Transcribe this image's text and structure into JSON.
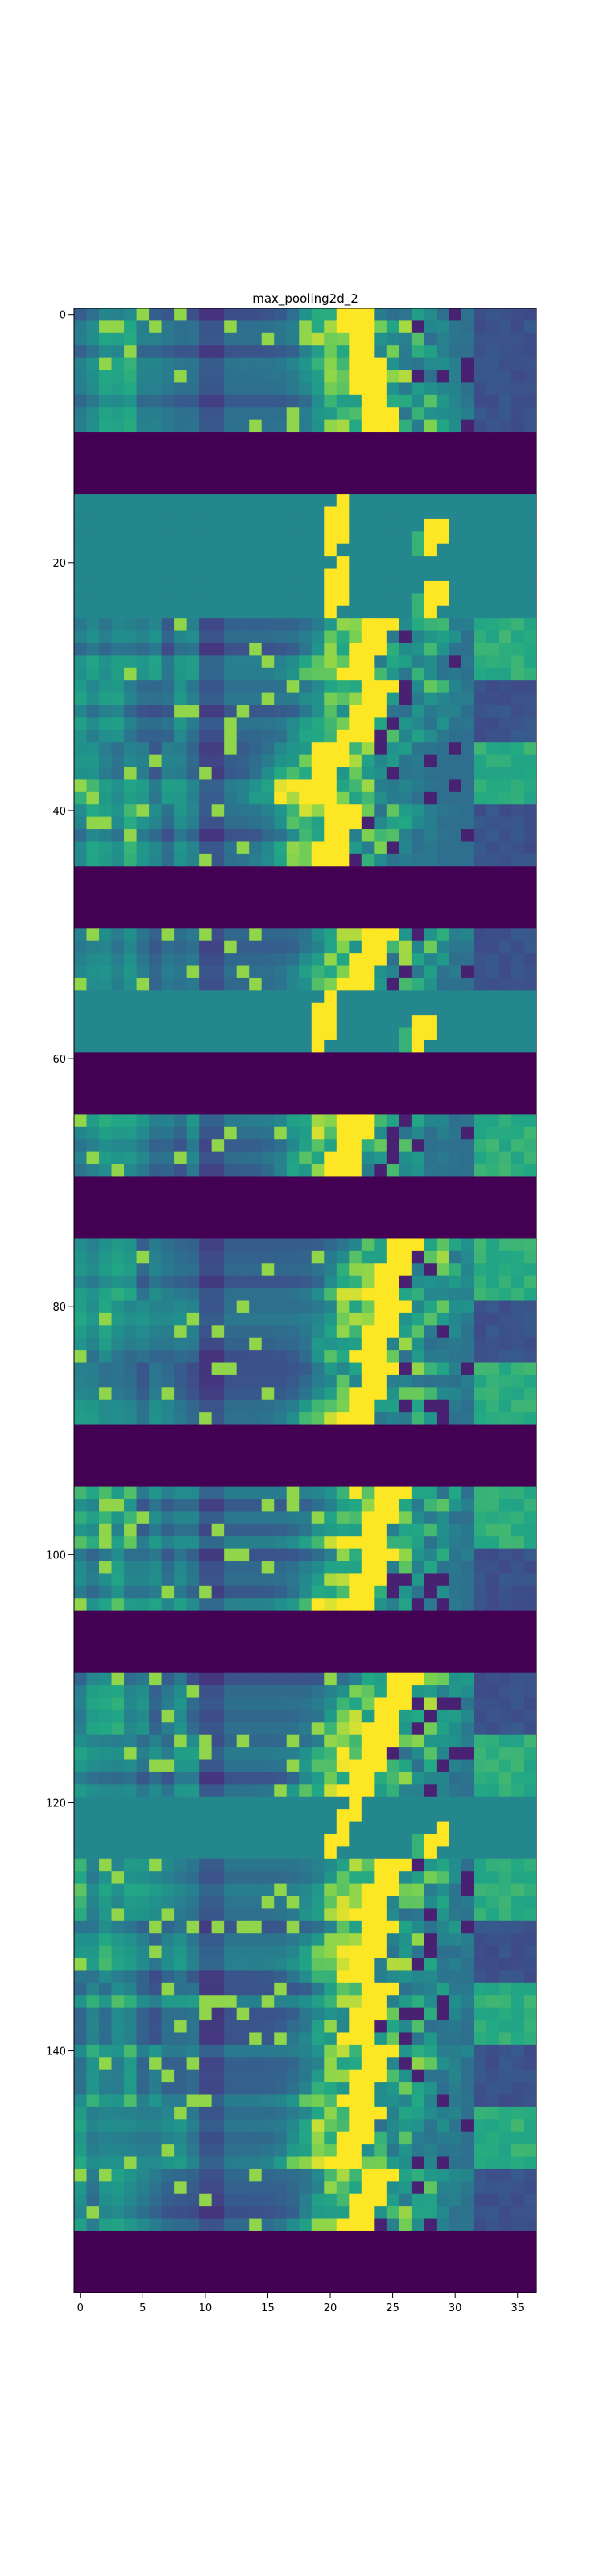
{
  "chart_data": {
    "type": "heatmap",
    "title": "max_pooling2d_2",
    "xlabel": "",
    "ylabel": "",
    "colormap": "viridis",
    "colors": {
      "dark": "#440154",
      "teal": "#21918c",
      "yellow": "#fde725"
    },
    "columns": 37,
    "rows": 160,
    "xlim": [
      -0.5,
      36.5
    ],
    "ylim": [
      159.5,
      -0.5
    ],
    "x_ticks": [
      0,
      5,
      10,
      15,
      20,
      25,
      30,
      35
    ],
    "y_ticks": [
      0,
      20,
      40,
      60,
      80,
      100,
      120,
      140
    ],
    "bands": [
      {
        "rows": [
          0,
          9
        ],
        "kind": "pattern",
        "path": [
          [
            22,
            0
          ],
          [
            23,
            5
          ],
          [
            24,
            9
          ]
        ]
      },
      {
        "rows": [
          10,
          14
        ],
        "kind": "empty"
      },
      {
        "rows": [
          15,
          19
        ],
        "kind": "flat",
        "path": [
          [
            21,
            15
          ],
          [
            20,
            19
          ]
        ]
      },
      {
        "rows": [
          20,
          24
        ],
        "kind": "flat",
        "path": [
          [
            21,
            20
          ],
          [
            20,
            24
          ]
        ]
      },
      {
        "rows": [
          25,
          29
        ],
        "kind": "pattern",
        "path": [
          [
            24,
            25
          ],
          [
            22,
            29
          ]
        ]
      },
      {
        "rows": [
          30,
          34
        ],
        "kind": "pattern",
        "path": [
          [
            24,
            30
          ],
          [
            22,
            34
          ]
        ]
      },
      {
        "rows": [
          35,
          39
        ],
        "kind": "pattern",
        "path": [
          [
            20,
            35
          ],
          [
            19,
            39
          ]
        ]
      },
      {
        "rows": [
          40,
          44
        ],
        "kind": "pattern",
        "path": [
          [
            21,
            40
          ],
          [
            20,
            44
          ]
        ]
      },
      {
        "rows": [
          45,
          49
        ],
        "kind": "empty"
      },
      {
        "rows": [
          50,
          54
        ],
        "kind": "pattern",
        "path": [
          [
            24,
            50
          ],
          [
            22,
            54
          ]
        ]
      },
      {
        "rows": [
          55,
          59
        ],
        "kind": "flat",
        "path": [
          [
            20,
            55
          ],
          [
            19,
            59
          ]
        ]
      },
      {
        "rows": [
          60,
          64
        ],
        "kind": "empty"
      },
      {
        "rows": [
          65,
          69
        ],
        "kind": "pattern",
        "path": [
          [
            22,
            65
          ],
          [
            21,
            69
          ]
        ]
      },
      {
        "rows": [
          70,
          74
        ],
        "kind": "empty"
      },
      {
        "rows": [
          75,
          79
        ],
        "kind": "pattern",
        "path": [
          [
            26,
            75
          ],
          [
            24,
            79
          ]
        ]
      },
      {
        "rows": [
          80,
          84
        ],
        "kind": "pattern",
        "path": [
          [
            25,
            80
          ],
          [
            23,
            84
          ]
        ]
      },
      {
        "rows": [
          85,
          89
        ],
        "kind": "pattern",
        "path": [
          [
            24,
            85
          ],
          [
            22,
            89
          ]
        ]
      },
      {
        "rows": [
          90,
          94
        ],
        "kind": "empty"
      },
      {
        "rows": [
          95,
          99
        ],
        "kind": "pattern",
        "path": [
          [
            25,
            95
          ],
          [
            23,
            99
          ]
        ]
      },
      {
        "rows": [
          100,
          104
        ],
        "kind": "pattern",
        "path": [
          [
            24,
            100
          ],
          [
            22,
            104
          ]
        ]
      },
      {
        "rows": [
          105,
          109
        ],
        "kind": "empty"
      },
      {
        "rows": [
          110,
          114
        ],
        "kind": "pattern",
        "path": [
          [
            26,
            110
          ],
          [
            24,
            114
          ]
        ]
      },
      {
        "rows": [
          115,
          119
        ],
        "kind": "pattern",
        "path": [
          [
            24,
            115
          ],
          [
            22,
            119
          ]
        ]
      },
      {
        "rows": [
          120,
          124
        ],
        "kind": "flat",
        "path": [
          [
            22,
            120
          ],
          [
            20,
            124
          ]
        ]
      },
      {
        "rows": [
          125,
          129
        ],
        "kind": "pattern",
        "path": [
          [
            25,
            125
          ],
          [
            23,
            129
          ]
        ]
      },
      {
        "rows": [
          130,
          134
        ],
        "kind": "pattern",
        "path": [
          [
            24,
            130
          ],
          [
            22,
            134
          ]
        ]
      },
      {
        "rows": [
          135,
          139
        ],
        "kind": "pattern",
        "path": [
          [
            24,
            135
          ],
          [
            22,
            139
          ]
        ]
      },
      {
        "rows": [
          140,
          144
        ],
        "kind": "pattern",
        "path": [
          [
            24,
            140
          ],
          [
            22,
            144
          ]
        ]
      },
      {
        "rows": [
          145,
          149
        ],
        "kind": "pattern",
        "path": [
          [
            23,
            145
          ],
          [
            21,
            149
          ]
        ]
      },
      {
        "rows": [
          150,
          154
        ],
        "kind": "pattern",
        "path": [
          [
            24,
            150
          ],
          [
            22,
            154
          ]
        ]
      },
      {
        "rows": [
          155,
          159
        ],
        "kind": "empty"
      }
    ]
  }
}
